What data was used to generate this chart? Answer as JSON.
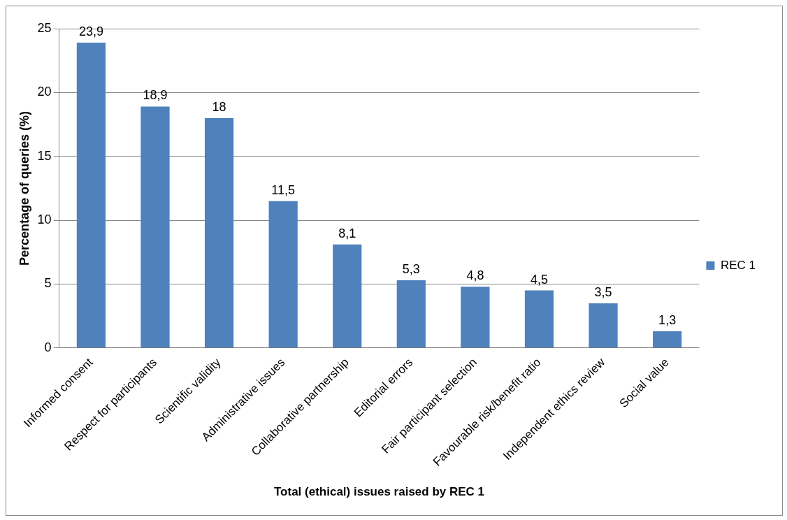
{
  "chart_data": {
    "type": "bar",
    "xlabel": "Total (ethical) issues raised by REC 1",
    "ylabel": "Percentage of queries (%)",
    "categories": [
      "Informed consent",
      "Respect for participants",
      "Scientific validity",
      "Administrative issues",
      "Collaborative partnership",
      "Editorial errors",
      "Fair participant selection",
      "Favourable risk/benefit ratio",
      "Independent ethics review",
      "Social value"
    ],
    "series": [
      {
        "name": "REC 1",
        "color": "#4f81bd",
        "values": [
          23.9,
          18.9,
          18,
          11.5,
          8.1,
          5.3,
          4.8,
          4.5,
          3.5,
          1.3
        ],
        "value_labels": [
          "23,9",
          "18,9",
          "18",
          "11,5",
          "8,1",
          "5,3",
          "4,8",
          "4,5",
          "3,5",
          "1,3"
        ]
      }
    ],
    "ylim": [
      0,
      25
    ],
    "yticks": [
      0,
      5,
      10,
      15,
      20,
      25
    ],
    "grid": "y",
    "legend": "right"
  }
}
